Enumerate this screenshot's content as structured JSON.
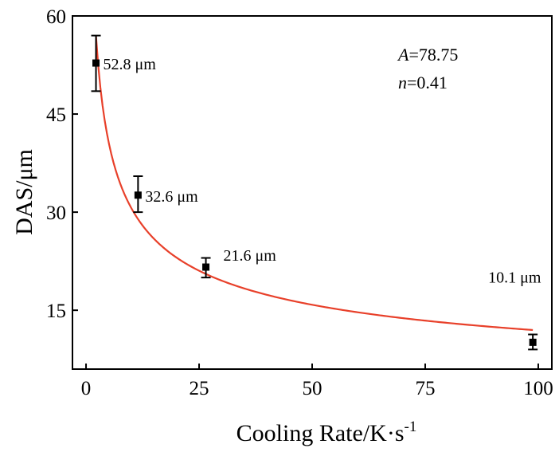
{
  "chart_data": {
    "type": "scatter",
    "xlabel": "Cooling Rate/K·s",
    "xlabel_superscript": "-1",
    "ylabel": "DAS/μm",
    "xlim": [
      -3,
      103
    ],
    "ylim": [
      6,
      60
    ],
    "xticks": [
      0,
      25,
      50,
      75,
      100
    ],
    "yticks": [
      15,
      30,
      45,
      60
    ],
    "x_tick_labels": [
      "0",
      "25",
      "50",
      "75",
      "100"
    ],
    "y_tick_labels": [
      "15",
      "30",
      "45",
      "60"
    ],
    "grid": false,
    "legend": "none",
    "series": [
      {
        "type": "scatter_errorbar",
        "color": "#000000",
        "points": [
          {
            "x": 2.2,
            "y": 52.8,
            "err_low": 48.5,
            "err_high": 57.0,
            "label": "52.8 μm"
          },
          {
            "x": 11.5,
            "y": 32.6,
            "err_low": 30.0,
            "err_high": 35.5,
            "label": "32.6 μm"
          },
          {
            "x": 26.5,
            "y": 21.6,
            "err_low": 20.0,
            "err_high": 23.0,
            "label": "21.6 μm"
          },
          {
            "x": 98.8,
            "y": 10.1,
            "err_low": 9.0,
            "err_high": 11.3,
            "label": "10.1 μm"
          }
        ]
      },
      {
        "type": "fit_curve",
        "color": "#e8402a",
        "formula": "y = A * x^(-n)",
        "A": 78.75,
        "n": 0.41,
        "x_range": [
          2.2,
          98.8
        ]
      }
    ],
    "annotations": {
      "A_symbol": "A",
      "A_value": "=78.75",
      "n_symbol": "n",
      "n_value": "=0.41"
    }
  }
}
